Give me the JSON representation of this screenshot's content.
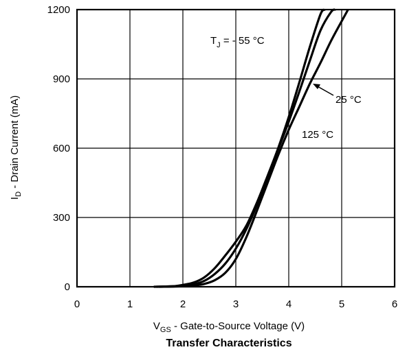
{
  "chart_data": {
    "type": "line",
    "title": "Transfer Characteristics",
    "xlabel": {
      "main": "V",
      "sub": "GS",
      "rest": " - Gate-to-Source Voltage (V)"
    },
    "ylabel": {
      "main": "I",
      "sub": "D",
      "rest": " - Drain Current (mA)"
    },
    "xlim": [
      0,
      6
    ],
    "ylim": [
      0,
      1200
    ],
    "xticks": [
      0,
      1,
      2,
      3,
      4,
      5,
      6
    ],
    "yticks": [
      0,
      300,
      600,
      900,
      1200
    ],
    "grid": true,
    "series": [
      {
        "x": [
          1.45,
          1.8,
          2.0,
          2.2,
          2.4,
          2.6,
          2.8,
          3.0,
          3.2,
          3.4,
          3.6,
          3.8,
          4.0,
          4.2,
          4.4,
          4.6,
          4.68
        ],
        "y": [
          0,
          2,
          8,
          18,
          40,
          80,
          135,
          195,
          265,
          365,
          480,
          600,
          735,
          885,
          1040,
          1180,
          1200
        ]
      },
      {
        "x": [
          1.5,
          2.0,
          2.2,
          2.4,
          2.6,
          2.8,
          3.0,
          3.2,
          3.4,
          3.6,
          3.8,
          4.0,
          4.2,
          4.4,
          4.6,
          4.8,
          4.88
        ],
        "y": [
          0,
          4,
          10,
          25,
          55,
          100,
          165,
          250,
          355,
          475,
          595,
          715,
          845,
          980,
          1110,
          1190,
          1200
        ]
      },
      {
        "x": [
          1.55,
          2.0,
          2.2,
          2.4,
          2.6,
          2.8,
          3.0,
          3.2,
          3.4,
          3.6,
          3.8,
          4.0,
          4.2,
          4.4,
          4.6,
          4.8,
          5.0,
          5.12
        ],
        "y": [
          0,
          2,
          5,
          12,
          28,
          60,
          120,
          215,
          330,
          450,
          570,
          680,
          780,
          880,
          970,
          1065,
          1150,
          1200
        ]
      }
    ],
    "annotations": [
      {
        "main": "T",
        "sub": "J",
        "rest": " = - 55 °C"
      },
      {
        "main": "25 °C"
      },
      {
        "main": "125 °C"
      }
    ]
  }
}
